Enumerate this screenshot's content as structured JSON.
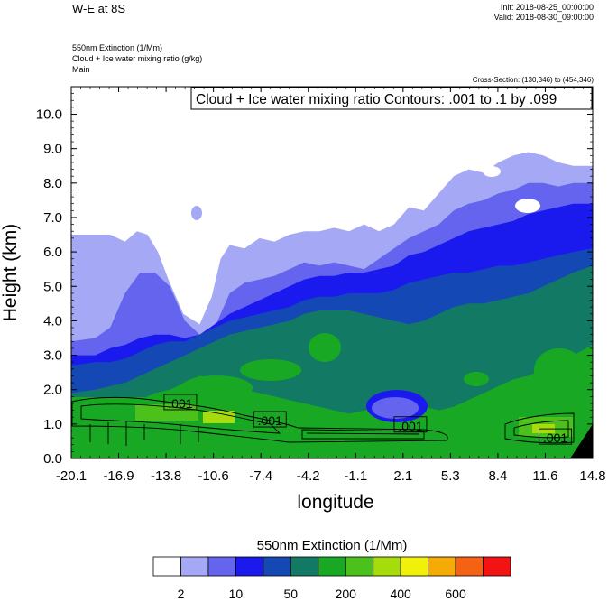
{
  "header": {
    "title": "W-E at 8S",
    "init": "Init: 2018-08-25_00:00:00",
    "valid": "Valid: 2018-08-30_09:00:00",
    "field1": "550nm Extinction   (1/Mm)",
    "field2": "Cloud + Ice water mixing ratio   (g/kg)",
    "field3": "Main",
    "cross_section": "Cross-Section: (130,346) to (454,346)"
  },
  "chart_data": {
    "type": "heatmap",
    "title": "W-E at 8S",
    "xlabel": "longitude",
    "ylabel": "Height (km)",
    "xlim": [
      -20.1,
      14.8
    ],
    "ylim": [
      0.0,
      10.8
    ],
    "x_ticks": [
      "-20.1",
      "-16.9",
      "-13.8",
      "-10.6",
      "-7.4",
      "-4.2",
      "-1.1",
      "2.1",
      "5.3",
      "8.4",
      "11.6",
      "14.8"
    ],
    "y_ticks": [
      "0.0",
      "1.0",
      "2.0",
      "3.0",
      "4.0",
      "5.0",
      "6.0",
      "7.0",
      "8.0",
      "9.0",
      "10.0"
    ],
    "contour_info": "Cloud + Ice water mixing ratio Contours: .001 to .1 by .099",
    "contour_labels": [
      {
        "text": ".001",
        "x": -12.8,
        "y": 1.6
      },
      {
        "text": ".001",
        "x": -6.8,
        "y": 1.1
      },
      {
        "text": ".001",
        "x": 2.6,
        "y": 0.95
      },
      {
        "text": ".001",
        "x": 12.3,
        "y": 0.6
      }
    ],
    "colorbar": {
      "title": "550nm Extinction  (1/Mm)",
      "colors": [
        "#ffffff",
        "#a5a8f4",
        "#6464ee",
        "#1a1aee",
        "#1448b4",
        "#127a64",
        "#19a823",
        "#4cc01b",
        "#a6dc0c",
        "#f0f00a",
        "#f5aa05",
        "#f56214",
        "#f31313"
      ],
      "labels": [
        "2",
        "10",
        "50",
        "200",
        "400",
        "600"
      ]
    },
    "layers": [
      {
        "level": "2",
        "top_km": [
          [
            -20.1,
            6.5
          ],
          [
            -18.5,
            6.5
          ],
          [
            -17.5,
            6.5
          ],
          [
            -16.5,
            6.3
          ],
          [
            -15.7,
            6.6
          ],
          [
            -15.0,
            6.5
          ],
          [
            -14.3,
            6.0
          ],
          [
            -13.6,
            5.2
          ],
          [
            -12.6,
            4.2
          ],
          [
            -11.5,
            3.9
          ],
          [
            -10.7,
            4.7
          ],
          [
            -10.1,
            5.8
          ],
          [
            -9.5,
            6.2
          ],
          [
            -8.5,
            6.1
          ],
          [
            -7.5,
            6.4
          ],
          [
            -6.5,
            6.3
          ],
          [
            -5.5,
            6.5
          ],
          [
            -4.5,
            6.6
          ],
          [
            -3.5,
            6.6
          ],
          [
            -2.5,
            6.7
          ],
          [
            -1.5,
            6.6
          ],
          [
            -0.5,
            6.8
          ],
          [
            0.5,
            6.6
          ],
          [
            1.5,
            6.8
          ],
          [
            2.5,
            7.3
          ],
          [
            3.5,
            7.2
          ],
          [
            4.5,
            7.7
          ],
          [
            5.5,
            8.2
          ],
          [
            6.5,
            8.4
          ],
          [
            7.5,
            8.3
          ],
          [
            8.5,
            8.6
          ],
          [
            9.5,
            8.8
          ],
          [
            10.5,
            8.9
          ],
          [
            11.5,
            8.8
          ],
          [
            12.5,
            8.6
          ],
          [
            13.5,
            8.5
          ],
          [
            14.8,
            8.5
          ]
        ]
      },
      {
        "level": "10",
        "top_km": [
          [
            -20.1,
            3.4
          ],
          [
            -18.5,
            3.5
          ],
          [
            -17.5,
            3.8
          ],
          [
            -16.5,
            4.8
          ],
          [
            -15.5,
            5.4
          ],
          [
            -14.5,
            5.4
          ],
          [
            -13.5,
            5.0
          ],
          [
            -12.5,
            4.0
          ],
          [
            -11.5,
            3.6
          ],
          [
            -10.5,
            3.8
          ],
          [
            -9.5,
            4.8
          ],
          [
            -8.5,
            5.1
          ],
          [
            -7.5,
            5.2
          ],
          [
            -6.5,
            5.3
          ],
          [
            -5.5,
            5.5
          ],
          [
            -4.5,
            5.7
          ],
          [
            -3.5,
            5.6
          ],
          [
            -2.5,
            5.7
          ],
          [
            -1.5,
            5.6
          ],
          [
            -0.5,
            5.5
          ],
          [
            0.5,
            5.8
          ],
          [
            1.5,
            6.1
          ],
          [
            2.5,
            6.4
          ],
          [
            3.5,
            6.6
          ],
          [
            4.5,
            6.8
          ],
          [
            5.5,
            7.2
          ],
          [
            6.5,
            7.4
          ],
          [
            7.5,
            7.5
          ],
          [
            8.5,
            7.7
          ],
          [
            9.5,
            7.8
          ],
          [
            10.5,
            8.0
          ],
          [
            11.5,
            8.0
          ],
          [
            12.5,
            7.9
          ],
          [
            13.5,
            8.0
          ],
          [
            14.8,
            8.0
          ]
        ]
      },
      {
        "level": "50",
        "top_km": [
          [
            -20.1,
            3.0
          ],
          [
            -18.5,
            3.0
          ],
          [
            -17.5,
            3.2
          ],
          [
            -16.5,
            3.3
          ],
          [
            -15.5,
            3.5
          ],
          [
            -14.5,
            3.6
          ],
          [
            -13.5,
            3.6
          ],
          [
            -12.5,
            3.5
          ],
          [
            -11.5,
            3.6
          ],
          [
            -10.5,
            3.9
          ],
          [
            -9.5,
            4.2
          ],
          [
            -8.5,
            4.4
          ],
          [
            -7.5,
            4.6
          ],
          [
            -6.5,
            4.8
          ],
          [
            -5.5,
            5.0
          ],
          [
            -4.5,
            5.2
          ],
          [
            -3.5,
            5.3
          ],
          [
            -2.5,
            5.3
          ],
          [
            -1.5,
            5.4
          ],
          [
            -0.5,
            5.4
          ],
          [
            0.5,
            5.5
          ],
          [
            1.5,
            5.6
          ],
          [
            2.5,
            5.9
          ],
          [
            3.5,
            6.0
          ],
          [
            4.5,
            6.2
          ],
          [
            5.5,
            6.4
          ],
          [
            6.5,
            6.6
          ],
          [
            7.5,
            6.7
          ],
          [
            8.5,
            6.8
          ],
          [
            9.5,
            6.9
          ],
          [
            10.5,
            7.1
          ],
          [
            11.5,
            7.2
          ],
          [
            12.5,
            7.3
          ],
          [
            13.5,
            7.4
          ],
          [
            14.8,
            7.4
          ]
        ]
      },
      {
        "level": "200",
        "top_km": [
          [
            -20.1,
            2.7
          ],
          [
            -18.5,
            2.8
          ],
          [
            -17.5,
            2.8
          ],
          [
            -16.5,
            2.9
          ],
          [
            -15.5,
            3.1
          ],
          [
            -14.5,
            3.3
          ],
          [
            -13.5,
            3.4
          ],
          [
            -12.5,
            3.4
          ],
          [
            -11.5,
            3.6
          ],
          [
            -10.5,
            3.8
          ],
          [
            -9.5,
            4.0
          ],
          [
            -8.5,
            4.1
          ],
          [
            -7.5,
            4.2
          ],
          [
            -6.5,
            4.3
          ],
          [
            -5.5,
            4.4
          ],
          [
            -4.5,
            4.6
          ],
          [
            -3.5,
            4.7
          ],
          [
            -2.5,
            4.7
          ],
          [
            -1.5,
            4.8
          ],
          [
            -0.5,
            4.8
          ],
          [
            0.5,
            4.8
          ],
          [
            1.5,
            4.9
          ],
          [
            2.5,
            5.1
          ],
          [
            3.5,
            5.2
          ],
          [
            4.5,
            5.3
          ],
          [
            5.5,
            5.4
          ],
          [
            6.5,
            5.4
          ],
          [
            7.5,
            5.5
          ],
          [
            8.5,
            5.6
          ],
          [
            9.5,
            5.6
          ],
          [
            10.5,
            5.7
          ],
          [
            11.5,
            5.8
          ],
          [
            12.5,
            5.9
          ],
          [
            13.5,
            6.0
          ],
          [
            14.8,
            6.1
          ]
        ]
      },
      {
        "level": "400",
        "top_km": [
          [
            -20.1,
            1.9
          ],
          [
            -18.5,
            2.0
          ],
          [
            -17.5,
            2.1
          ],
          [
            -16.5,
            2.2
          ],
          [
            -15.5,
            2.4
          ],
          [
            -14.5,
            2.6
          ],
          [
            -13.5,
            2.8
          ],
          [
            -12.5,
            3.0
          ],
          [
            -11.5,
            3.2
          ],
          [
            -10.5,
            3.4
          ],
          [
            -9.5,
            3.6
          ],
          [
            -8.5,
            3.7
          ],
          [
            -7.5,
            3.8
          ],
          [
            -6.5,
            3.9
          ],
          [
            -5.5,
            4.0
          ],
          [
            -4.5,
            4.2
          ],
          [
            -3.5,
            4.3
          ],
          [
            -2.5,
            4.3
          ],
          [
            -1.5,
            4.3
          ],
          [
            -0.5,
            4.2
          ],
          [
            0.5,
            4.1
          ],
          [
            1.5,
            4.0
          ],
          [
            2.5,
            3.9
          ],
          [
            3.5,
            4.0
          ],
          [
            4.5,
            4.2
          ],
          [
            5.5,
            4.4
          ],
          [
            6.5,
            4.5
          ],
          [
            7.5,
            4.5
          ],
          [
            8.5,
            4.6
          ],
          [
            9.5,
            4.7
          ],
          [
            10.5,
            4.8
          ],
          [
            11.5,
            5.0
          ],
          [
            12.5,
            5.2
          ],
          [
            13.5,
            5.4
          ],
          [
            14.8,
            5.6
          ]
        ]
      },
      {
        "level": "600",
        "top_km": [
          [
            -20.1,
            1.1
          ],
          [
            -18.5,
            1.2
          ],
          [
            -17.5,
            1.3
          ],
          [
            -16.5,
            1.5
          ],
          [
            -15.5,
            1.7
          ],
          [
            -14.5,
            1.9
          ],
          [
            -13.5,
            2.0
          ],
          [
            -12.5,
            2.2
          ],
          [
            -11.5,
            2.4
          ],
          [
            -10.5,
            2.3
          ],
          [
            -9.5,
            2.1
          ],
          [
            -8.5,
            2.0
          ],
          [
            -7.5,
            1.9
          ],
          [
            -6.5,
            1.8
          ],
          [
            -5.5,
            1.7
          ],
          [
            -4.5,
            1.6
          ],
          [
            -3.5,
            1.5
          ],
          [
            -2.5,
            1.4
          ],
          [
            -1.5,
            1.3
          ],
          [
            -0.5,
            1.4
          ],
          [
            0.5,
            1.5
          ],
          [
            1.5,
            1.6
          ],
          [
            2.5,
            1.6
          ],
          [
            3.5,
            1.5
          ],
          [
            4.5,
            1.4
          ],
          [
            5.5,
            1.5
          ],
          [
            6.5,
            1.7
          ],
          [
            7.5,
            1.9
          ],
          [
            8.5,
            2.1
          ],
          [
            9.5,
            2.3
          ],
          [
            10.5,
            2.4
          ],
          [
            11.5,
            2.6
          ],
          [
            12.5,
            2.8
          ],
          [
            13.5,
            3.0
          ],
          [
            14.8,
            3.3
          ]
        ]
      }
    ]
  }
}
